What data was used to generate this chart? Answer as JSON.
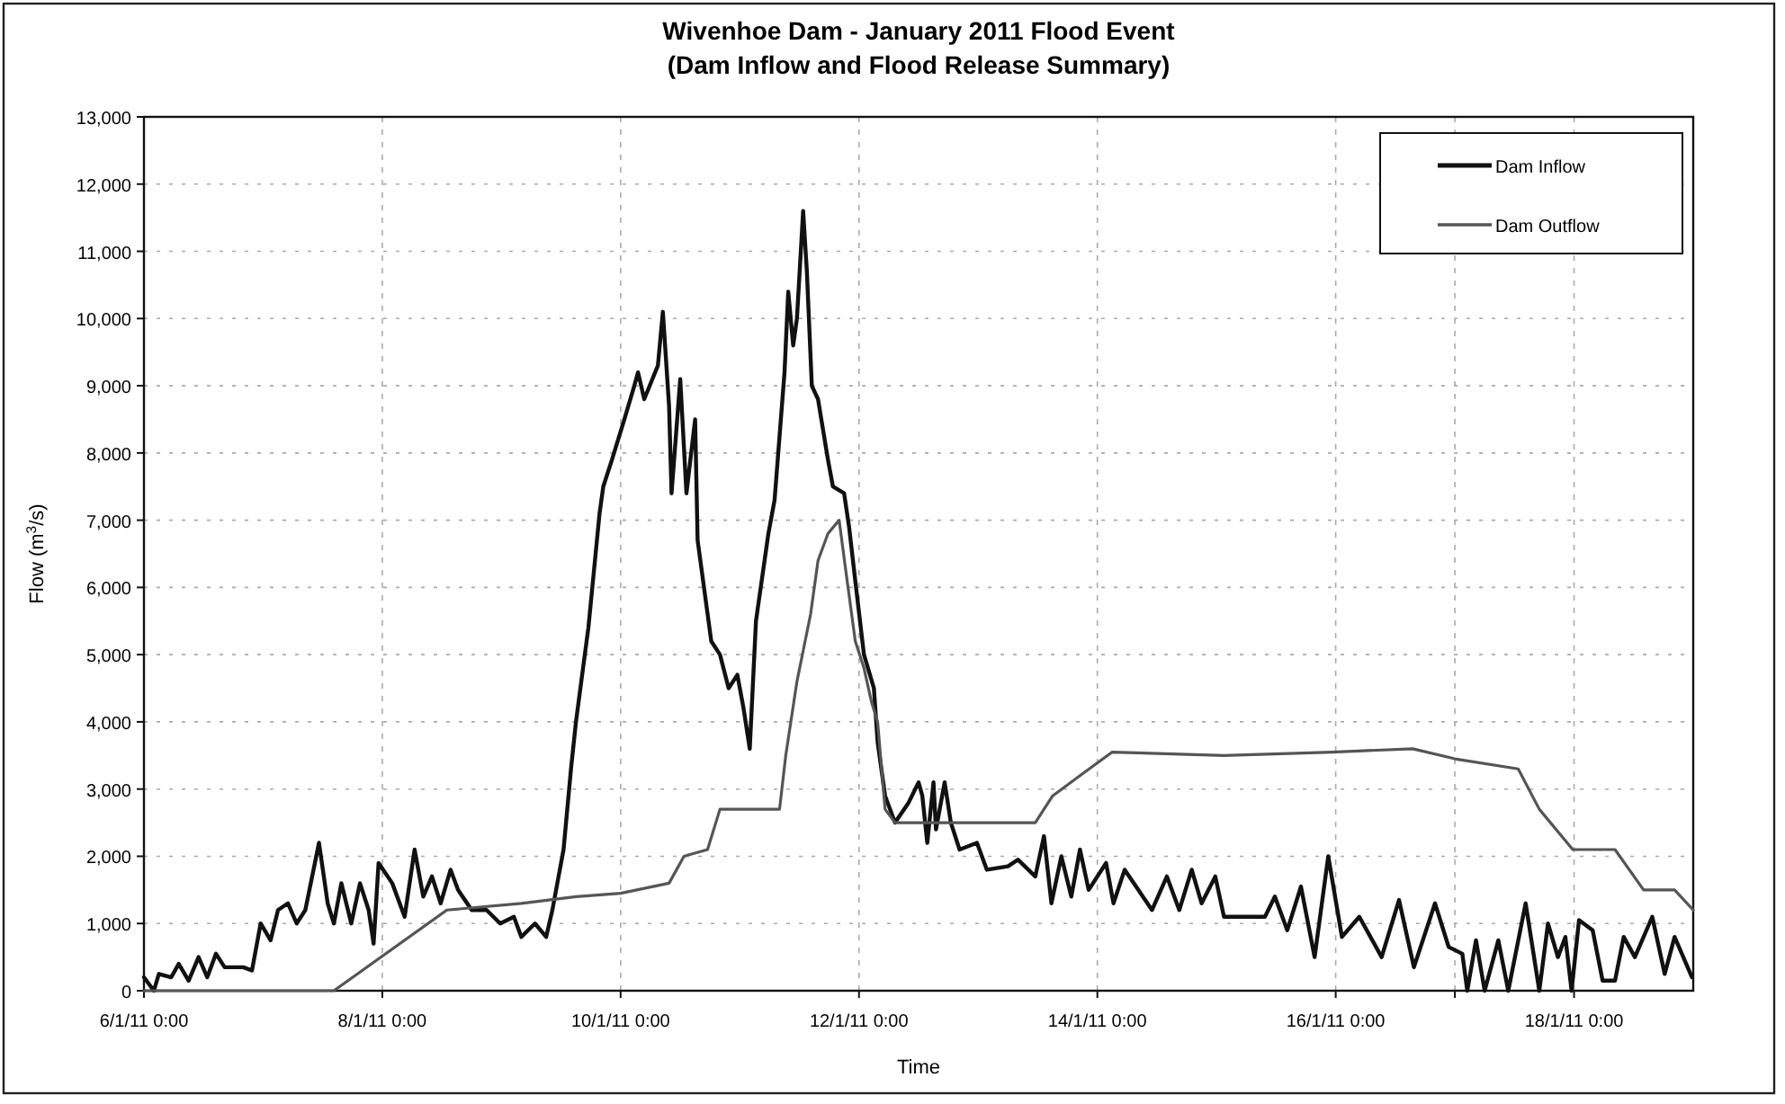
{
  "chart_data": {
    "type": "line",
    "title": "Wivenhoe Dam - January 2011 Flood Event",
    "subtitle": "(Dam Inflow and Flood Release Summary)",
    "xlabel": "Time",
    "ylabel": "Flow (m$^{3}$/s)",
    "xlim": [
      "2011-01-06T00:00",
      "2011-01-19T00:00"
    ],
    "xticks": [
      {
        "value": "2011-01-06T00:00",
        "label": "6/1/11 0:00"
      },
      {
        "value": "2011-01-08T00:00",
        "label": "8/1/11 0:00"
      },
      {
        "value": "2011-01-10T00:00",
        "label": "10/1/11 0:00"
      },
      {
        "value": "2011-01-12T00:00",
        "label": "12/1/11 0:00"
      },
      {
        "value": "2011-01-14T00:00",
        "label": "14/1/11 0:00"
      },
      {
        "value": "2011-01-16T00:00",
        "label": "16/1/11 0:00"
      },
      {
        "value": "2011-01-17T00:00",
        "label": null
      },
      {
        "value": "2011-01-18T00:00",
        "label": "18/1/11 0:00"
      }
    ],
    "ylim": [
      0,
      13000
    ],
    "yticks": [
      {
        "value": 0,
        "label": "0"
      },
      {
        "value": 1000,
        "label": "1,000"
      },
      {
        "value": 2000,
        "label": "2,000"
      },
      {
        "value": 3000,
        "label": "3,000"
      },
      {
        "value": 4000,
        "label": "4,000"
      },
      {
        "value": 5000,
        "label": "5,000"
      },
      {
        "value": 6000,
        "label": "6,000"
      },
      {
        "value": 7000,
        "label": "7,000"
      },
      {
        "value": 8000,
        "label": "8,000"
      },
      {
        "value": 9000,
        "label": "9,000"
      },
      {
        "value": 10000,
        "label": "10,000"
      },
      {
        "value": 11000,
        "label": "11,000"
      },
      {
        "value": 12000,
        "label": "12,000"
      },
      {
        "value": 13000,
        "label": "13,000"
      }
    ],
    "grid": true,
    "legend": "top right",
    "marker": "none",
    "series": [
      {
        "name": "Dam Inflow",
        "color": "#111111",
        "x": [
          "2011-01-06T00:00",
          "2011-01-06T02:00",
          "2011-01-06T03:00",
          "2011-01-06T05:30",
          "2011-01-06T07:00",
          "2011-01-06T09:00",
          "2011-01-06T11:00",
          "2011-01-06T12:45",
          "2011-01-06T14:30",
          "2011-01-06T16:15",
          "2011-01-06T20:00",
          "2011-01-06T21:45",
          "2011-01-06T23:30",
          "2011-01-07T01:30",
          "2011-01-07T03:00",
          "2011-01-07T05:00",
          "2011-01-07T06:45",
          "2011-01-07T08:30",
          "2011-01-07T11:15",
          "2011-01-07T13:00",
          "2011-01-07T14:15",
          "2011-01-07T15:45",
          "2011-01-07T17:45",
          "2011-01-07T19:30",
          "2011-01-07T21:15",
          "2011-01-07T22:15",
          "2011-01-07T23:15",
          "2011-01-08T02:00",
          "2011-01-08T04:30",
          "2011-01-08T06:30",
          "2011-01-08T08:15",
          "2011-01-08T10:00",
          "2011-01-08T11:45",
          "2011-01-08T13:45",
          "2011-01-08T15:15",
          "2011-01-08T18:00",
          "2011-01-08T21:00",
          "2011-01-08T23:45",
          "2011-01-09T02:30",
          "2011-01-09T04:00",
          "2011-01-09T06:45",
          "2011-01-09T09:00",
          "2011-01-09T10:15",
          "2011-01-09T11:15",
          "2011-01-09T12:30",
          "2011-01-09T14:00",
          "2011-01-09T15:00",
          "2011-01-09T17:30",
          "2011-01-09T19:45",
          "2011-01-09T20:30",
          "2011-01-09T22:15",
          "2011-01-10T00:45",
          "2011-01-10T02:45",
          "2011-01-10T03:30",
          "2011-01-10T04:45",
          "2011-01-10T07:30",
          "2011-01-10T08:30",
          "2011-01-10T09:45",
          "2011-01-10T10:15",
          "2011-01-10T12:00",
          "2011-01-10T13:15",
          "2011-01-10T15:00",
          "2011-01-10T15:30",
          "2011-01-10T18:15",
          "2011-01-10T20:00",
          "2011-01-10T21:45",
          "2011-01-10T23:30",
          "2011-01-11T00:45",
          "2011-01-11T02:00",
          "2011-01-11T03:15",
          "2011-01-11T05:45",
          "2011-01-11T07:00",
          "2011-01-11T09:00",
          "2011-01-11T09:45",
          "2011-01-11T10:45",
          "2011-01-11T11:30",
          "2011-01-11T12:45",
          "2011-01-11T13:30",
          "2011-01-11T14:30",
          "2011-01-11T15:45",
          "2011-01-11T17:45",
          "2011-01-11T18:45",
          "2011-01-11T21:00",
          "2011-01-11T22:00",
          "2011-01-11T23:15",
          "2011-01-12T01:00",
          "2011-01-12T03:00",
          "2011-01-12T03:45",
          "2011-01-12T05:15",
          "2011-01-12T07:15",
          "2011-01-12T10:00",
          "2011-01-12T12:00",
          "2011-01-12T12:45",
          "2011-01-12T13:45",
          "2011-01-12T15:00",
          "2011-01-12T15:30",
          "2011-01-12T17:15",
          "2011-01-12T18:30",
          "2011-01-12T20:15",
          "2011-01-12T23:45",
          "2011-01-13T01:45",
          "2011-01-13T06:00",
          "2011-01-13T08:00",
          "2011-01-13T11:30",
          "2011-01-13T13:15",
          "2011-01-13T14:45",
          "2011-01-13T16:45",
          "2011-01-13T18:45",
          "2011-01-13T20:30",
          "2011-01-13T22:15",
          "2011-01-14T01:45",
          "2011-01-14T03:15",
          "2011-01-14T05:30",
          "2011-01-14T08:15",
          "2011-01-14T11:00",
          "2011-01-14T14:00",
          "2011-01-14T16:30",
          "2011-01-14T19:00",
          "2011-01-14T21:00",
          "2011-01-14T23:45",
          "2011-01-15T01:30",
          "2011-01-15T09:45",
          "2011-01-15T11:45",
          "2011-01-15T14:15",
          "2011-01-15T17:00",
          "2011-01-15T19:45",
          "2011-01-15T22:30",
          "2011-01-16T01:15",
          "2011-01-16T04:45",
          "2011-01-16T09:15",
          "2011-01-16T12:45",
          "2011-01-16T15:45",
          "2011-01-16T20:00",
          "2011-01-16T22:45",
          "2011-01-17T01:30",
          "2011-01-17T02:30",
          "2011-01-17T04:15",
          "2011-01-17T06:00",
          "2011-01-17T08:45",
          "2011-01-17T10:45",
          "2011-01-17T14:15",
          "2011-01-17T17:00",
          "2011-01-17T18:45",
          "2011-01-17T20:45",
          "2011-01-17T22:15",
          "2011-01-17T23:30",
          "2011-01-18T01:00",
          "2011-01-18T03:45",
          "2011-01-18T05:45",
          "2011-01-18T08:15",
          "2011-01-18T10:00",
          "2011-01-18T12:15",
          "2011-01-18T15:45",
          "2011-01-18T18:15",
          "2011-01-18T20:15",
          "2011-01-18T22:00",
          "2011-01-18T23:45"
        ],
        "values": [
          200,
          0,
          250,
          200,
          400,
          150,
          500,
          200,
          550,
          350,
          350,
          300,
          1000,
          750,
          1200,
          1300,
          1000,
          1200,
          2200,
          1300,
          1000,
          1600,
          1000,
          1600,
          1200,
          700,
          1900,
          1600,
          1100,
          2100,
          1400,
          1700,
          1300,
          1800,
          1500,
          1200,
          1200,
          1000,
          1100,
          800,
          1000,
          800,
          1200,
          1600,
          2100,
          3300,
          4000,
          5400,
          7100,
          7500,
          7900,
          8500,
          9000,
          9200,
          8800,
          9300,
          10100,
          8700,
          7400,
          9100,
          7400,
          8500,
          6700,
          5200,
          5000,
          4500,
          4700,
          4200,
          3600,
          5500,
          6800,
          7300,
          9200,
          10400,
          9600,
          10000,
          11600,
          10700,
          9000,
          8800,
          7900,
          7500,
          7400,
          6900,
          6100,
          5000,
          4500,
          3700,
          2900,
          2500,
          2800,
          3100,
          2900,
          2200,
          3100,
          2400,
          3100,
          2500,
          2100,
          2200,
          1800,
          1850,
          1950,
          1700,
          2300,
          1300,
          2000,
          1400,
          2100,
          1500,
          1900,
          1300,
          1800,
          1500,
          1200,
          1700,
          1200,
          1800,
          1300,
          1700,
          1100,
          1100,
          1400,
          900,
          1550,
          500,
          2000,
          800,
          1100,
          500,
          1350,
          350,
          1300,
          650,
          550,
          0,
          750,
          0,
          750,
          0,
          1300,
          0,
          1000,
          500,
          800,
          0,
          1050,
          900,
          150,
          150,
          800,
          500,
          1100,
          250,
          800,
          500,
          200
        ]
      },
      {
        "name": "Dam Outflow",
        "color": "#555555",
        "x": [
          "2011-01-06T00:00",
          "2011-01-07T14:15",
          "2011-01-08T13:00",
          "2011-01-09T04:00",
          "2011-01-09T15:00",
          "2011-01-10T00:00",
          "2011-01-10T09:45",
          "2011-01-10T12:45",
          "2011-01-10T17:30",
          "2011-01-10T20:00",
          "2011-01-11T08:00",
          "2011-01-11T09:15",
          "2011-01-11T11:30",
          "2011-01-11T14:15",
          "2011-01-11T15:45",
          "2011-01-11T17:45",
          "2011-01-11T20:00",
          "2011-01-11T21:15",
          "2011-01-11T23:15",
          "2011-01-12T01:00",
          "2011-01-12T02:30",
          "2011-01-12T03:45",
          "2011-01-12T05:15",
          "2011-01-12T07:15",
          "2011-01-13T11:30",
          "2011-01-13T15:00",
          "2011-01-13T20:30",
          "2011-01-14T03:00",
          "2011-01-15T01:30",
          "2011-01-15T23:15",
          "2011-01-16T15:30",
          "2011-01-17T00:00",
          "2011-01-17T12:45",
          "2011-01-17T17:00",
          "2011-01-17T23:45",
          "2011-01-18T08:15",
          "2011-01-18T14:00",
          "2011-01-18T20:15",
          "2011-01-19T00:00"
        ],
        "values": [
          0,
          0,
          1200,
          1300,
          1400,
          1450,
          1600,
          2000,
          2100,
          2700,
          2700,
          3500,
          4600,
          5600,
          6400,
          6800,
          7000,
          6300,
          5200,
          4800,
          4300,
          4000,
          2700,
          2500,
          2500,
          2900,
          3200,
          3550,
          3500,
          3550,
          3600,
          3450,
          3300,
          2700,
          2100,
          2100,
          1500,
          1500,
          1200
        ]
      }
    ]
  }
}
